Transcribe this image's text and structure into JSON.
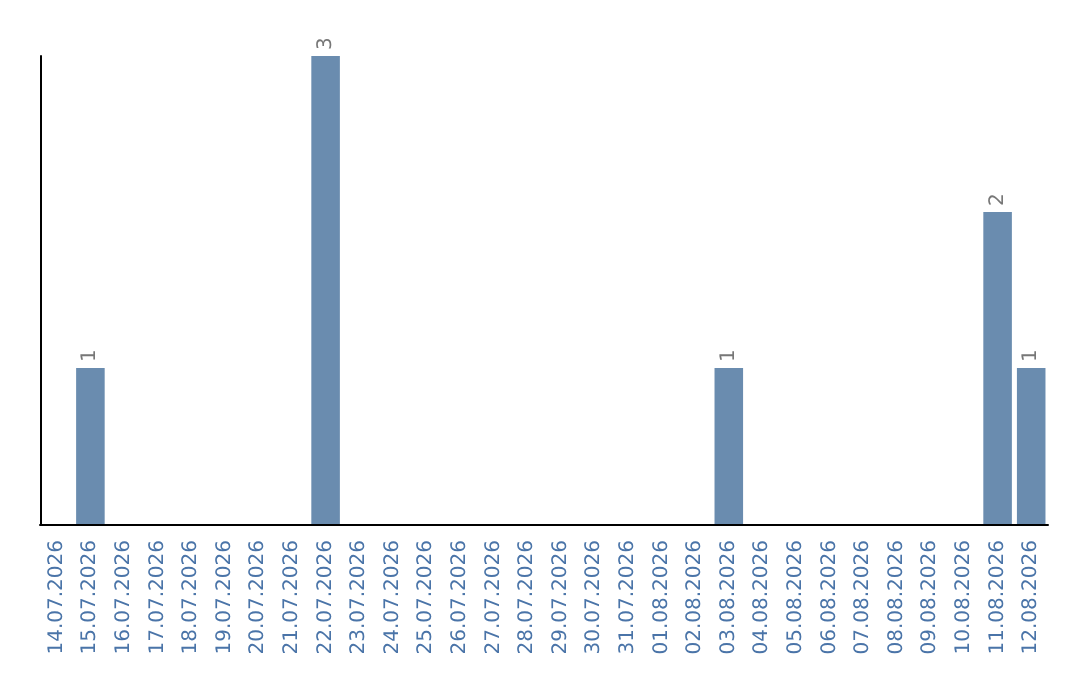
{
  "chart_data": {
    "type": "bar",
    "categories": [
      "14.07.2026",
      "15.07.2026",
      "16.07.2026",
      "17.07.2026",
      "18.07.2026",
      "19.07.2026",
      "20.07.2026",
      "21.07.2026",
      "22.07.2026",
      "23.07.2026",
      "24.07.2026",
      "25.07.2026",
      "26.07.2026",
      "27.07.2026",
      "28.07.2026",
      "29.07.2026",
      "30.07.2026",
      "31.07.2026",
      "01.08.2026",
      "02.08.2026",
      "03.08.2026",
      "04.08.2026",
      "05.08.2026",
      "06.08.2026",
      "07.08.2026",
      "08.08.2026",
      "09.08.2026",
      "10.08.2026",
      "11.08.2026",
      "12.08.2026"
    ],
    "values": [
      0,
      1,
      0,
      0,
      0,
      0,
      0,
      0,
      3,
      0,
      0,
      0,
      0,
      0,
      0,
      0,
      0,
      0,
      0,
      0,
      1,
      0,
      0,
      0,
      0,
      0,
      0,
      0,
      2,
      1
    ],
    "value_labels": [
      null,
      "1",
      null,
      null,
      null,
      null,
      null,
      null,
      "3",
      null,
      null,
      null,
      null,
      null,
      null,
      null,
      null,
      null,
      null,
      null,
      "1",
      null,
      null,
      null,
      null,
      null,
      null,
      null,
      "2",
      "1"
    ],
    "color": "#6a8caf",
    "grid": false,
    "tick_labels": "x"
  }
}
